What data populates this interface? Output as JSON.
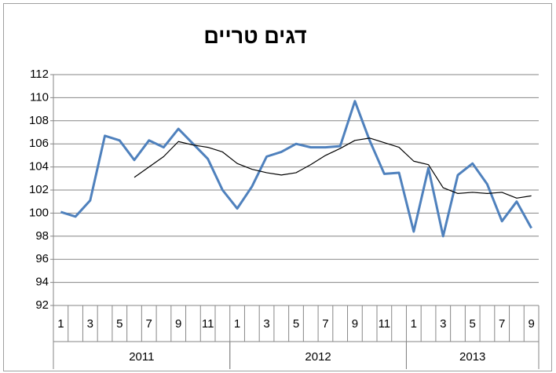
{
  "chart_data": {
    "type": "line",
    "title": "דגים טריים",
    "categories": [
      "1",
      null,
      "3",
      null,
      "5",
      null,
      "7",
      null,
      "9",
      null,
      "11",
      null,
      "1",
      null,
      "3",
      null,
      "5",
      null,
      "7",
      null,
      "9",
      null,
      "11",
      null,
      "1",
      null,
      "3",
      null,
      "5",
      null,
      "7",
      null,
      "9"
    ],
    "groups": [
      {
        "label": "2011",
        "count": 12
      },
      {
        "label": "2012",
        "count": 12
      },
      {
        "label": "2013",
        "count": 9
      }
    ],
    "series": [
      {
        "color": "#4f81bd",
        "width": 3,
        "values": [
          100.1,
          99.7,
          101.1,
          106.7,
          106.3,
          104.6,
          106.3,
          105.7,
          107.3,
          106.0,
          104.7,
          102.0,
          100.4,
          102.3,
          104.9,
          105.3,
          106.0,
          105.7,
          105.7,
          105.8,
          109.7,
          106.3,
          103.4,
          103.5,
          98.4,
          103.9,
          98.0,
          103.3,
          104.3,
          102.5,
          99.3,
          101.0,
          98.7
        ]
      },
      {
        "color": "#000000",
        "width": 1.2,
        "values": [
          null,
          null,
          null,
          null,
          null,
          103.1,
          104.0,
          104.9,
          106.2,
          105.9,
          105.7,
          105.3,
          104.3,
          103.8,
          103.5,
          103.3,
          103.5,
          104.2,
          105.0,
          105.6,
          106.3,
          106.5,
          106.1,
          105.7,
          104.5,
          104.2,
          102.2,
          101.7,
          101.8,
          101.7,
          101.8,
          101.3,
          101.5
        ]
      }
    ],
    "ylim": [
      92,
      112
    ],
    "yticks": [
      92,
      94,
      96,
      98,
      100,
      102,
      104,
      106,
      108,
      110,
      112
    ],
    "grid": true
  }
}
